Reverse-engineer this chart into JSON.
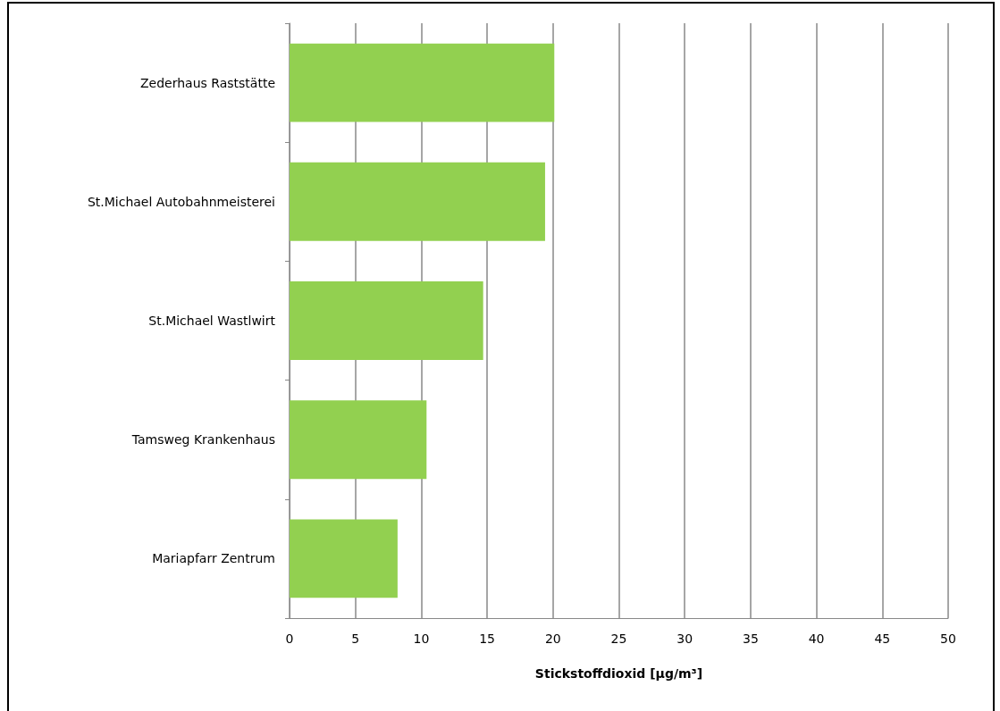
{
  "chart_data": {
    "type": "bar",
    "orientation": "horizontal",
    "xlabel": "Stickstoffdioxid [µg/m³]",
    "categories": [
      "Zederhaus Raststätte",
      "St.Michael Autobahnmeisterei",
      "St.Michael Wastlwirt",
      "Tamsweg Krankenhaus",
      "Mariapfarr Zentrum"
    ],
    "values": [
      20.1,
      19.4,
      14.7,
      10.4,
      8.2
    ],
    "color": "#92d050",
    "xlim": [
      0,
      50
    ],
    "xticks": [
      0,
      5,
      10,
      15,
      20,
      25,
      30,
      35,
      40,
      45,
      50
    ],
    "grid": "x"
  }
}
